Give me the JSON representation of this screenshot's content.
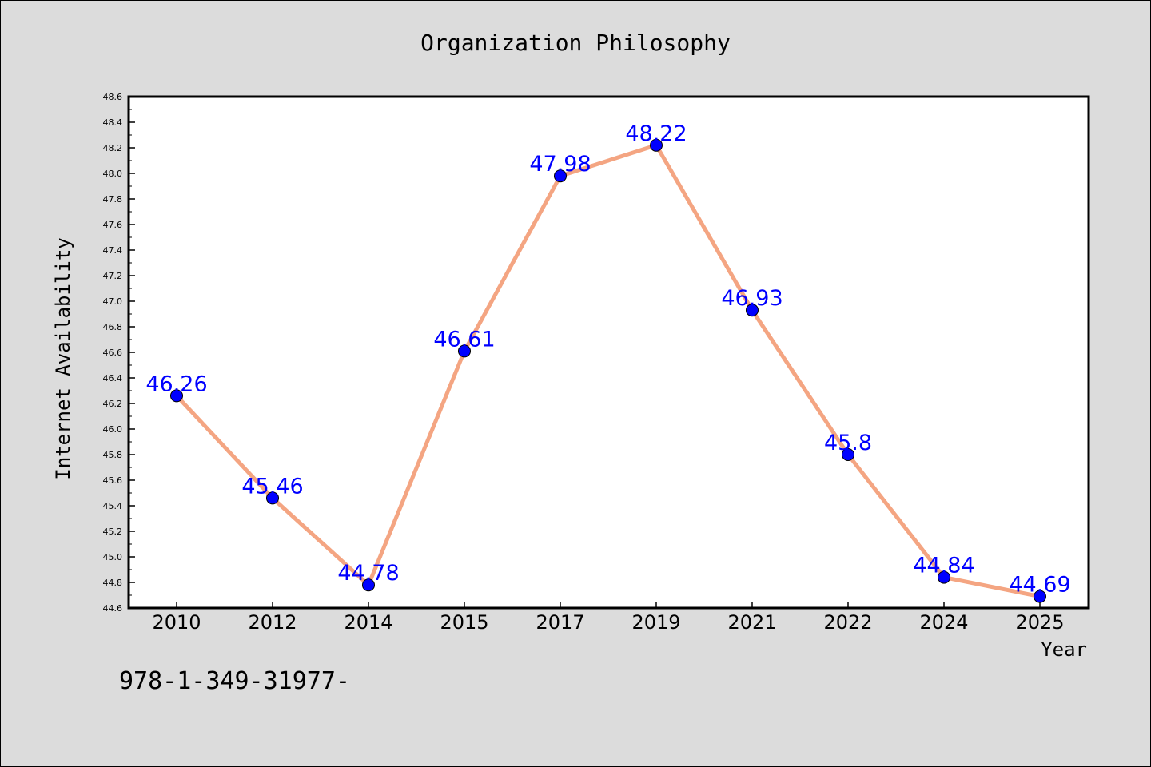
{
  "chart_data": {
    "type": "line",
    "title": "Organization Philosophy",
    "xlabel": "Year",
    "ylabel": "Internet Availability",
    "categories": [
      "2010",
      "2012",
      "2014",
      "2015",
      "2017",
      "2019",
      "2021",
      "2022",
      "2024",
      "2025"
    ],
    "series": [
      {
        "values": [
          46.26,
          45.46,
          44.78,
          46.61,
          47.98,
          48.22,
          46.93,
          45.8,
          44.84,
          44.69
        ],
        "data_labels": [
          "46.26",
          "45.46",
          "44.78",
          "46.61",
          "47.98",
          "48.22",
          "46.93",
          "45.8",
          "44.84",
          "44.69"
        ]
      }
    ],
    "ylim": [
      44.6,
      48.6
    ],
    "yticks": [
      "44.6",
      "44.8",
      "45.0",
      "45.2",
      "45.4",
      "45.6",
      "45.8",
      "46.0",
      "46.2",
      "46.4",
      "46.6",
      "46.8",
      "47.0",
      "47.2",
      "47.4",
      "47.6",
      "47.8",
      "48.0",
      "48.2",
      "48.4",
      "48.6"
    ],
    "grid": false,
    "line_color": "#f4a582",
    "marker_color": "#0000ff",
    "label_color": "#0000ff"
  },
  "footer_text": "978-1-349-31977-"
}
